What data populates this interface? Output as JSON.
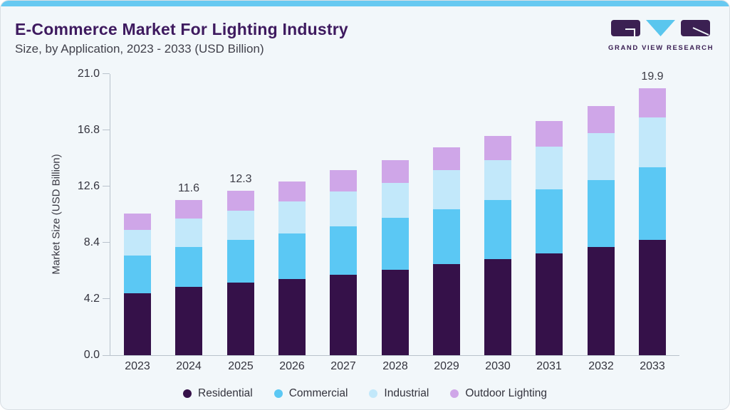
{
  "header": {
    "title": "E-Commerce Market For Lighting Industry",
    "subtitle": "Size, by Application, 2023 - 2033 (USD Billion)"
  },
  "logo": {
    "text": "GRAND VIEW RESEARCH",
    "mark_dark_color": "#3b2052",
    "mark_cyan_color": "#5ac6ee"
  },
  "chart_data": {
    "type": "bar",
    "stacked": true,
    "title": "E-Commerce Market For Lighting Industry Size, by Application, 2023 - 2033 (USD Billion)",
    "categories": [
      "2023",
      "2024",
      "2025",
      "2026",
      "2027",
      "2028",
      "2029",
      "2030",
      "2031",
      "2032",
      "2033"
    ],
    "series": [
      {
        "name": "Residential",
        "color": "#351149",
        "values": [
          4.6,
          5.1,
          5.4,
          5.7,
          6.0,
          6.4,
          6.8,
          7.2,
          7.6,
          8.1,
          8.6
        ]
      },
      {
        "name": "Commercial",
        "color": "#5bc8f4",
        "values": [
          2.8,
          3.0,
          3.2,
          3.4,
          3.6,
          3.9,
          4.1,
          4.4,
          4.8,
          5.0,
          5.4
        ]
      },
      {
        "name": "Industrial",
        "color": "#c2e8fa",
        "values": [
          1.9,
          2.1,
          2.2,
          2.4,
          2.6,
          2.6,
          2.9,
          3.0,
          3.2,
          3.5,
          3.7
        ]
      },
      {
        "name": "Outdoor Lighting",
        "color": "#cfa6e8",
        "values": [
          1.2,
          1.4,
          1.5,
          1.5,
          1.6,
          1.7,
          1.7,
          1.8,
          1.9,
          2.0,
          2.2
        ]
      }
    ],
    "totals": [
      10.5,
      11.6,
      12.3,
      13.0,
      13.8,
      14.6,
      15.5,
      16.4,
      17.5,
      18.6,
      19.9
    ],
    "total_labels": {
      "2024": "11.6",
      "2025": "12.3",
      "2033": "19.9"
    },
    "ylabel": "Market Size (USD Billion)",
    "yticks": [
      "0.0",
      "4.2",
      "8.4",
      "12.6",
      "16.8",
      "21.0"
    ],
    "ylim": [
      0,
      21
    ],
    "xlabel": "",
    "grid": false,
    "legend_position": "bottom"
  }
}
